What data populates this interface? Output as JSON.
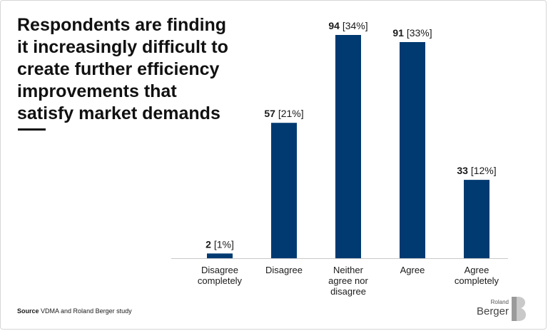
{
  "headline": {
    "lines": [
      "Respondents are finding",
      "it increasingly difficult to",
      "create further efficiency",
      "improvements that",
      "satisfy market demands"
    ]
  },
  "source": {
    "label": "Source",
    "text": "VDMA and Roland Berger study"
  },
  "logo": {
    "small": "Roland",
    "big": "Berger",
    "mark": "B"
  },
  "colors": {
    "bar": "#003a70",
    "baseline": "#c8c8c8",
    "text": "#1a1a1a"
  },
  "chart_data": {
    "type": "bar",
    "title": "Respondents are finding it increasingly difficult to create further efficiency improvements that satisfy market demands",
    "categories": [
      [
        "Disagree",
        "completely"
      ],
      [
        "Disagree"
      ],
      [
        "Neither",
        "agree nor",
        "disagree"
      ],
      [
        "Agree"
      ],
      [
        "Agree",
        "completely"
      ]
    ],
    "values": [
      2,
      57,
      94,
      91,
      33
    ],
    "value_labels": [
      "2",
      "57",
      "94",
      "91",
      "33"
    ],
    "percent_labels": [
      "[1%]",
      "[21%]",
      "[34%]",
      "[33%]",
      "[12%]"
    ],
    "ylim": [
      0,
      94
    ],
    "xlabel": "",
    "ylabel": "",
    "grid": false
  }
}
